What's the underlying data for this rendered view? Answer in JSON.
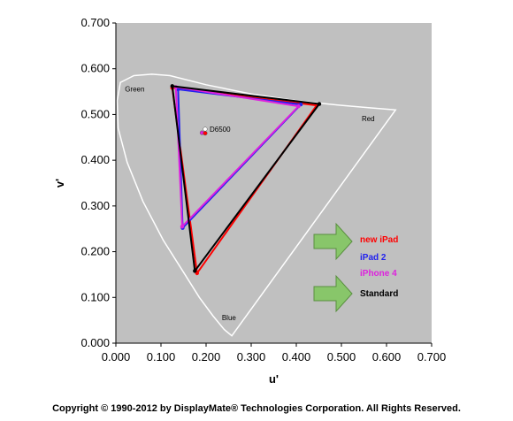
{
  "chart_data": {
    "type": "scatter",
    "xlabel": "u'",
    "ylabel": "v'",
    "xlim": [
      0,
      0.7
    ],
    "ylim": [
      0,
      0.7
    ],
    "x_ticks": [
      "0.000",
      "0.100",
      "0.200",
      "0.300",
      "0.400",
      "0.500",
      "0.600",
      "0.700"
    ],
    "y_ticks": [
      "0.000",
      "0.100",
      "0.200",
      "0.300",
      "0.400",
      "0.500",
      "0.600",
      "0.700"
    ],
    "background_color": "#c0c0c0",
    "grid": false,
    "locus_color": "#ffffff",
    "spectral_locus": [
      [
        0.257,
        0.016
      ],
      [
        0.24,
        0.03
      ],
      [
        0.215,
        0.06
      ],
      [
        0.185,
        0.1
      ],
      [
        0.15,
        0.155
      ],
      [
        0.105,
        0.225
      ],
      [
        0.06,
        0.31
      ],
      [
        0.025,
        0.395
      ],
      [
        0.005,
        0.47
      ],
      [
        0.003,
        0.53
      ],
      [
        0.01,
        0.57
      ],
      [
        0.04,
        0.585
      ],
      [
        0.08,
        0.588
      ],
      [
        0.12,
        0.585
      ],
      [
        0.2,
        0.565
      ],
      [
        0.3,
        0.545
      ],
      [
        0.4,
        0.53
      ],
      [
        0.5,
        0.52
      ],
      [
        0.56,
        0.515
      ],
      [
        0.62,
        0.51
      ]
    ],
    "region_labels": [
      {
        "text": "Green",
        "u": 0.02,
        "v": 0.55
      },
      {
        "text": "Red",
        "u": 0.545,
        "v": 0.485
      },
      {
        "text": "Blue",
        "u": 0.235,
        "v": 0.05
      }
    ],
    "series": [
      {
        "name": "new iPad",
        "color": "#ff0000",
        "points": [
          [
            0.125,
            0.558
          ],
          [
            0.445,
            0.52
          ],
          [
            0.18,
            0.153
          ]
        ]
      },
      {
        "name": "iPad 2",
        "color": "#2222ee",
        "points": [
          [
            0.138,
            0.555
          ],
          [
            0.41,
            0.522
          ],
          [
            0.148,
            0.252
          ]
        ]
      },
      {
        "name": "iPhone 4",
        "color": "#dd22dd",
        "points": [
          [
            0.133,
            0.56
          ],
          [
            0.405,
            0.518
          ],
          [
            0.147,
            0.255
          ]
        ]
      },
      {
        "name": "Standard",
        "color": "#000000",
        "points": [
          [
            0.125,
            0.562
          ],
          [
            0.451,
            0.523
          ],
          [
            0.175,
            0.158
          ]
        ]
      }
    ],
    "white_points": [
      {
        "label": "D6500",
        "u": 0.198,
        "v": 0.468,
        "color": "#ffffff"
      },
      {
        "label": "",
        "u": 0.191,
        "v": 0.46,
        "color": "#dd22dd"
      },
      {
        "label": "",
        "u": 0.198,
        "v": 0.459,
        "color": "#ff0000"
      }
    ],
    "arrow_color": "#88c66a",
    "legend_placement": "lower-right"
  },
  "legend": {
    "new_ipad": "new iPad",
    "ipad2": "iPad 2",
    "iphone4": "iPhone 4",
    "standard": "Standard",
    "new_ipad_color": "#ff0000",
    "ipad2_color": "#2222ee",
    "iphone4_color": "#dd22dd",
    "standard_color": "#000000"
  },
  "footer": {
    "copyright": "Copyright © 1990-2012 by DisplayMate® Technologies Corporation. All Rights Reserved."
  }
}
